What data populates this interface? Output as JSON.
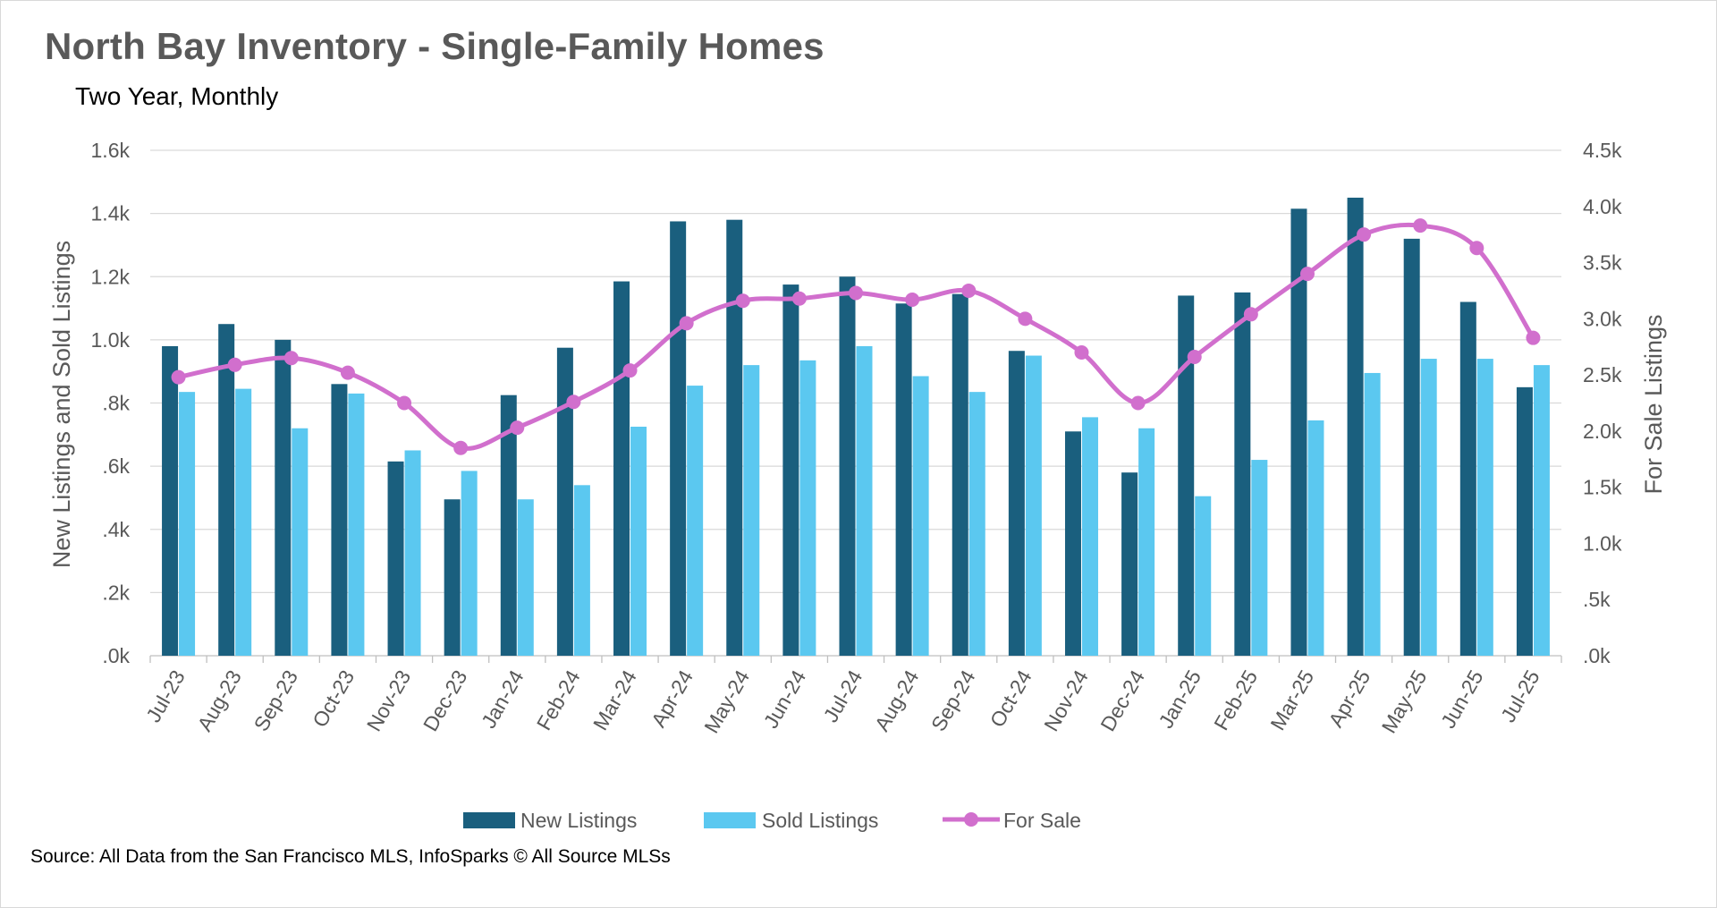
{
  "title": "North Bay Inventory - Single-Family Homes",
  "subtitle": "Two Year, Monthly",
  "source": "Source: All Data from the San Francisco MLS, InfoSparks © All Source MLSs",
  "chart_data": {
    "type": "bar",
    "categories": [
      "Jul-23",
      "Aug-23",
      "Sep-23",
      "Oct-23",
      "Nov-23",
      "Dec-23",
      "Jan-24",
      "Feb-24",
      "Mar-24",
      "Apr-24",
      "May-24",
      "Jun-24",
      "Jul-24",
      "Aug-24",
      "Sep-24",
      "Oct-24",
      "Nov-24",
      "Dec-24",
      "Jan-25",
      "Feb-25",
      "Mar-25",
      "Apr-25",
      "May-25",
      "Jun-25",
      "Jul-25"
    ],
    "series": [
      {
        "name": "New Listings",
        "type": "bar",
        "axis": "left",
        "color": "#1a5f7e",
        "values": [
          980,
          1050,
          1000,
          860,
          615,
          495,
          825,
          975,
          1185,
          1375,
          1380,
          1175,
          1200,
          1115,
          1145,
          965,
          710,
          580,
          1140,
          1150,
          1415,
          1450,
          1320,
          1120,
          850
        ]
      },
      {
        "name": "Sold Listings",
        "type": "bar",
        "axis": "left",
        "color": "#5bc8f0",
        "values": [
          835,
          845,
          720,
          830,
          650,
          585,
          495,
          540,
          725,
          855,
          920,
          935,
          980,
          885,
          835,
          950,
          755,
          720,
          505,
          620,
          745,
          895,
          940,
          940,
          920
        ]
      },
      {
        "name": "For Sale",
        "type": "line",
        "axis": "right",
        "color": "#d16fcd",
        "values": [
          2480,
          2590,
          2650,
          2520,
          2250,
          1850,
          2030,
          2260,
          2540,
          2960,
          3160,
          3180,
          3230,
          3170,
          3250,
          3000,
          2700,
          2250,
          2660,
          3040,
          3400,
          3750,
          3830,
          3630,
          2830
        ]
      }
    ],
    "left_axis": {
      "title": "New Listings and Sold Listings",
      "ylim": [
        0,
        1600
      ],
      "ticks": [
        ".0k",
        ".2k",
        ".4k",
        ".6k",
        ".8k",
        "1.0k",
        "1.2k",
        "1.4k",
        "1.6k"
      ]
    },
    "right_axis": {
      "title": "For Sale Listings",
      "ylim": [
        0,
        4500
      ],
      "ticks": [
        ".0k",
        ".5k",
        "1.0k",
        "1.5k",
        "2.0k",
        "2.5k",
        "3.0k",
        "3.5k",
        "4.0k",
        "4.5k"
      ]
    },
    "legend": [
      "New Listings",
      "Sold Listings",
      "For Sale"
    ],
    "legend_position": "bottom",
    "grid": true
  }
}
